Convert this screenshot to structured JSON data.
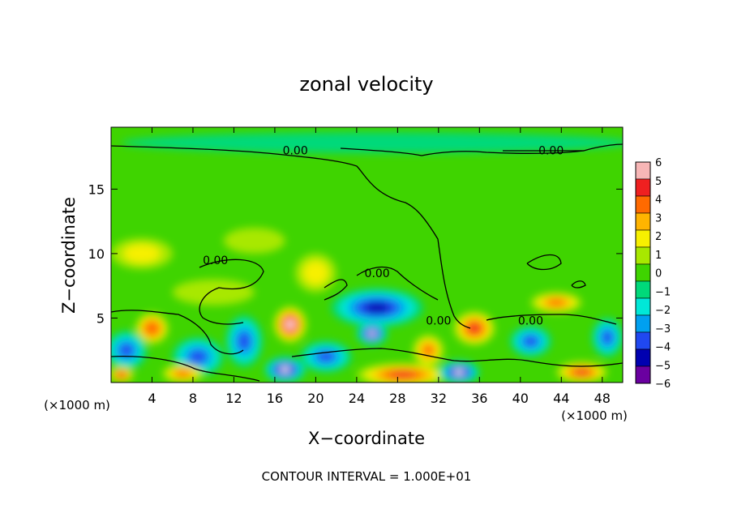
{
  "chart_data": {
    "type": "heatmap",
    "title": "zonal velocity",
    "xlabel": "X−coordinate",
    "ylabel": "Z−coordinate",
    "x_unit_left": "(×1000 m)",
    "x_unit_right": "(×1000 m)",
    "xlim": [
      0,
      50
    ],
    "ylim": [
      0,
      19.8
    ],
    "xticks": [
      4,
      8,
      12,
      16,
      20,
      24,
      28,
      32,
      36,
      40,
      44,
      48
    ],
    "xtick_labels": [
      "4",
      "8",
      "12",
      "16",
      "20",
      "24",
      "28",
      "32",
      "36",
      "40",
      "44",
      "48"
    ],
    "yticks": [
      5,
      10,
      15
    ],
    "ytick_labels": [
      "5",
      "10",
      "15"
    ],
    "footer": "CONTOUR INTERVAL = 1.000E+01",
    "contour_labels": [
      {
        "text": "0.00",
        "x": 18.0,
        "y": 18.0
      },
      {
        "text": "0.00",
        "x": 43.0,
        "y": 18.0
      },
      {
        "text": "0.00",
        "x": 10.2,
        "y": 9.5
      },
      {
        "text": "0.00",
        "x": 26.0,
        "y": 8.5
      },
      {
        "text": "0.00",
        "x": 32.0,
        "y": 4.8
      },
      {
        "text": "0.00",
        "x": 41.0,
        "y": 4.8
      }
    ],
    "colorbar": {
      "min": -6,
      "max": 6,
      "tick_labels": [
        "6",
        "5",
        "4",
        "3",
        "2",
        "1",
        "0",
        "−1",
        "−2",
        "−3",
        "−4",
        "−5",
        "−6"
      ],
      "colors": [
        "#f7b6b6",
        "#ef2020",
        "#ff6a00",
        "#ffb400",
        "#f7f000",
        "#a8e800",
        "#3fd400",
        "#00d97a",
        "#00e8d8",
        "#00a0f0",
        "#2048f0",
        "#0000b0",
        "#6a00a0"
      ]
    },
    "field_blobs": [
      {
        "x": 4.0,
        "y": 4.2,
        "rx": 1.6,
        "ry": 1.2,
        "v": 4.5
      },
      {
        "x": 1.5,
        "y": 2.5,
        "rx": 2.0,
        "ry": 1.5,
        "v": -4.0
      },
      {
        "x": 8.5,
        "y": 2.0,
        "rx": 2.5,
        "ry": 1.5,
        "v": -3.5
      },
      {
        "x": 13.0,
        "y": 3.2,
        "rx": 1.8,
        "ry": 2.0,
        "v": -4.0
      },
      {
        "x": 17.5,
        "y": 4.5,
        "rx": 1.6,
        "ry": 1.4,
        "v": 6.0
      },
      {
        "x": 17.0,
        "y": 1.0,
        "rx": 2.0,
        "ry": 1.0,
        "v": -6.0
      },
      {
        "x": 21.0,
        "y": 2.0,
        "rx": 2.5,
        "ry": 1.2,
        "v": -3.5
      },
      {
        "x": 26.0,
        "y": 5.8,
        "rx": 4.5,
        "ry": 1.5,
        "v": -5.0
      },
      {
        "x": 25.5,
        "y": 3.8,
        "rx": 1.5,
        "ry": 0.9,
        "v": -6.0
      },
      {
        "x": 28.5,
        "y": 0.6,
        "rx": 4.5,
        "ry": 0.9,
        "v": 5.0
      },
      {
        "x": 31.0,
        "y": 2.5,
        "rx": 1.5,
        "ry": 1.2,
        "v": 4.0
      },
      {
        "x": 35.5,
        "y": 4.2,
        "rx": 2.0,
        "ry": 1.3,
        "v": 5.0
      },
      {
        "x": 34.0,
        "y": 0.8,
        "rx": 2.0,
        "ry": 0.9,
        "v": -5.5
      },
      {
        "x": 41.0,
        "y": 3.2,
        "rx": 2.0,
        "ry": 1.2,
        "v": -4.0
      },
      {
        "x": 43.5,
        "y": 6.2,
        "rx": 2.5,
        "ry": 0.8,
        "v": 4.0
      },
      {
        "x": 48.5,
        "y": 3.5,
        "rx": 1.5,
        "ry": 1.5,
        "v": -4.0
      },
      {
        "x": 46.0,
        "y": 0.8,
        "rx": 2.5,
        "ry": 0.8,
        "v": 5.0
      },
      {
        "x": 7.0,
        "y": 0.7,
        "rx": 2.0,
        "ry": 0.7,
        "v": 4.0
      },
      {
        "x": 1.0,
        "y": 0.6,
        "rx": 1.2,
        "ry": 0.6,
        "v": 5.0
      },
      {
        "x": 10.0,
        "y": 7.0,
        "rx": 4.0,
        "ry": 1.0,
        "v": 1.5
      },
      {
        "x": 3.0,
        "y": 10.0,
        "rx": 3.0,
        "ry": 1.2,
        "v": 2.0
      },
      {
        "x": 26.0,
        "y": 18.6,
        "rx": 25.0,
        "ry": 0.8,
        "v": -0.8
      },
      {
        "x": 14.0,
        "y": 11.0,
        "rx": 3.0,
        "ry": 1.0,
        "v": 1.2
      },
      {
        "x": 20.0,
        "y": 8.5,
        "rx": 2.0,
        "ry": 1.5,
        "v": 1.8
      }
    ]
  }
}
